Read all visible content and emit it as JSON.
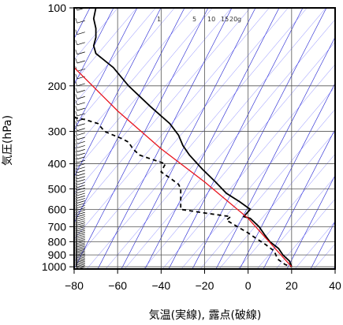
{
  "chart_data": {
    "type": "line",
    "title": "",
    "xlabel": "気温(実線), 露点(破線)",
    "ylabel": "気圧(hPa)",
    "xlim": [
      -80,
      40
    ],
    "ylim": [
      1020,
      100
    ],
    "x_ticks": [
      -80,
      -60,
      -40,
      -20,
      0,
      20,
      40
    ],
    "x_tick_labels": [
      "−80",
      "−60",
      "−40",
      "−20",
      "0",
      "20",
      "40"
    ],
    "y_ticks": [
      100,
      200,
      300,
      400,
      500,
      600,
      700,
      800,
      900,
      1000
    ],
    "y_tick_labels": [
      "100",
      "200",
      "300",
      "400",
      "500",
      "600",
      "700",
      "800",
      "900",
      "1000"
    ],
    "y_scale": "log",
    "mixing_ratio_labels": [
      "1",
      "5",
      "10",
      "15",
      "20",
      "g"
    ],
    "series": [
      {
        "color": "#000000",
        "style": "solid",
        "points": [
          [
            -70,
            100
          ],
          [
            -71,
            110
          ],
          [
            -70,
            120
          ],
          [
            -70,
            130
          ],
          [
            -71,
            140
          ],
          [
            -70,
            150
          ],
          [
            -62,
            170
          ],
          [
            -55,
            200
          ],
          [
            -45,
            240
          ],
          [
            -36,
            280
          ],
          [
            -32,
            310
          ],
          [
            -30,
            340
          ],
          [
            -27,
            370
          ],
          [
            -21,
            420
          ],
          [
            -15,
            470
          ],
          [
            -10,
            520
          ],
          [
            -4,
            560
          ],
          [
            1,
            600
          ],
          [
            -2,
            640
          ],
          [
            1,
            650
          ],
          [
            5,
            700
          ],
          [
            8,
            760
          ],
          [
            10,
            800
          ],
          [
            14,
            850
          ],
          [
            16,
            900
          ],
          [
            19,
            950
          ],
          [
            20,
            1000
          ]
        ]
      },
      {
        "color": "#000000",
        "style": "dashed",
        "points": [
          [
            -80,
            265
          ],
          [
            -75,
            270
          ],
          [
            -69,
            280
          ],
          [
            -66,
            300
          ],
          [
            -62,
            310
          ],
          [
            -58,
            320
          ],
          [
            -55,
            330
          ],
          [
            -53,
            350
          ],
          [
            -50,
            370
          ],
          [
            -46,
            380
          ],
          [
            -42,
            390
          ],
          [
            -38,
            400
          ],
          [
            -40,
            430
          ],
          [
            -35,
            460
          ],
          [
            -32,
            480
          ],
          [
            -31,
            500
          ],
          [
            -31,
            600
          ],
          [
            -20,
            620
          ],
          [
            -8,
            640
          ],
          [
            -10,
            660
          ],
          [
            -5,
            700
          ],
          [
            0,
            740
          ],
          [
            4,
            780
          ],
          [
            8,
            820
          ],
          [
            12,
            870
          ],
          [
            13,
            910
          ],
          [
            14,
            940
          ],
          [
            17,
            980
          ],
          [
            20,
            1000
          ]
        ]
      },
      {
        "color": "#e8141e",
        "style": "solid",
        "points": [
          [
            -80,
            170
          ],
          [
            -60,
            250
          ],
          [
            -40,
            350
          ],
          [
            -20,
            470
          ],
          [
            0,
            650
          ],
          [
            20,
            1000
          ]
        ]
      }
    ],
    "background_lines": {
      "dry_adiabats_color": "#1e1ed2",
      "mixing_ratio_color": "#5a5aff",
      "grid_color": "#555555"
    },
    "wind_barbs": "left side, near x = -75, 1000–100 hPa",
    "grid": true
  }
}
